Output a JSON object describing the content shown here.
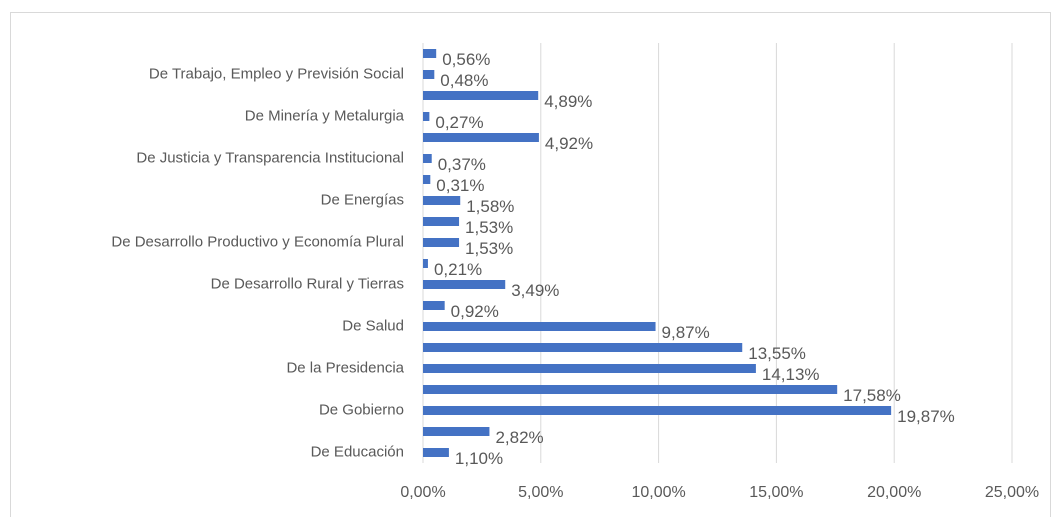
{
  "chart_data": {
    "type": "bar",
    "orientation": "horizontal",
    "categories": [
      "De Educación",
      null,
      "De Gobierno",
      null,
      "De la Presidencia",
      null,
      "De Salud",
      null,
      "De Desarrollo Rural y Tierras",
      null,
      "De Desarrollo Productivo y Economía Plural",
      null,
      "De Energías",
      null,
      "De Justicia y Transparencia Institucional",
      null,
      "De Minería y Metalurgia",
      null,
      "De Trabajo, Empleo y Previsión Social",
      null
    ],
    "values": [
      1.1,
      2.82,
      19.87,
      17.58,
      14.13,
      13.55,
      9.87,
      0.92,
      3.49,
      0.21,
      1.53,
      1.53,
      1.58,
      0.31,
      0.37,
      4.92,
      0.27,
      4.89,
      0.48,
      0.56
    ],
    "value_labels": [
      "1,10%",
      "2,82%",
      "19,87%",
      "17,58%",
      "14,13%",
      "13,55%",
      "9,87%",
      "0,92%",
      "3,49%",
      "0,21%",
      "1,53%",
      "1,53%",
      "1,58%",
      "0,31%",
      "0,37%",
      "4,92%",
      "0,27%",
      "4,89%",
      "0,48%",
      "0,56%"
    ],
    "color": "#4472c4",
    "xlim": [
      0,
      25
    ],
    "xticks": [
      {
        "value": 0,
        "label": "0,00%"
      },
      {
        "value": 5,
        "label": "5,00%"
      },
      {
        "value": 10,
        "label": "10,00%"
      },
      {
        "value": 15,
        "label": "15,00%"
      },
      {
        "value": 20,
        "label": "20,00%"
      },
      {
        "value": 25,
        "label": "25,00%"
      }
    ],
    "grid": true
  }
}
